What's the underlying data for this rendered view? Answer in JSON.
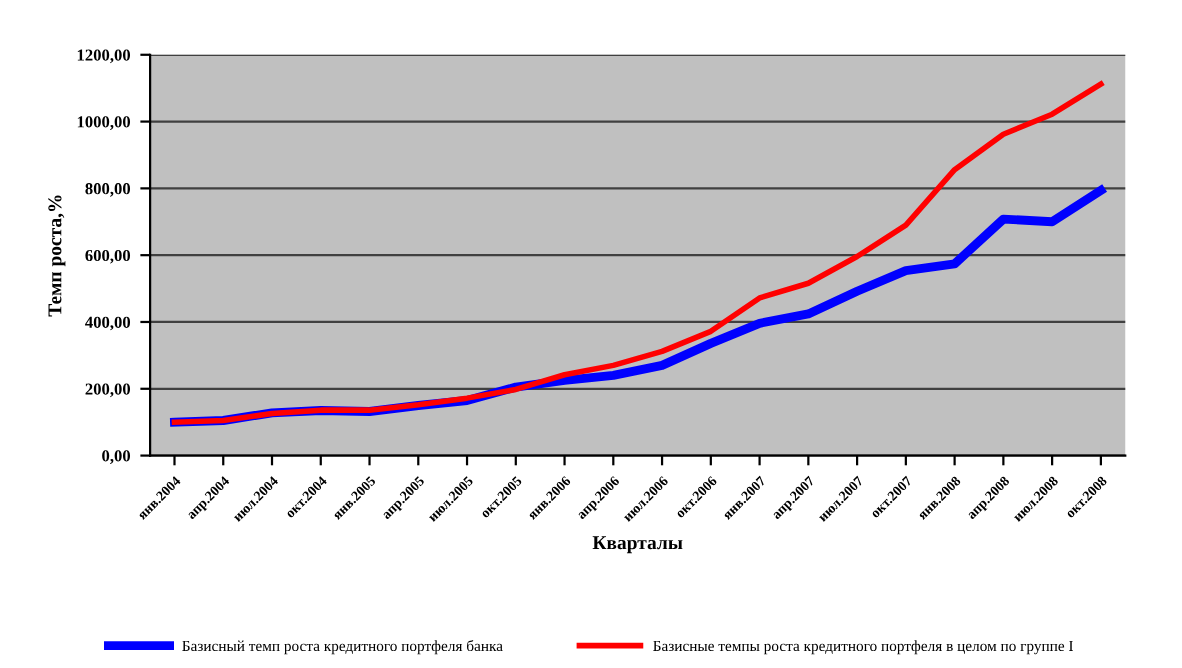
{
  "chart_data": {
    "type": "line",
    "xlabel": "Кварталы",
    "ylabel": "Темп роста,%",
    "categories": [
      "янв.2004",
      "апр.2004",
      "июл.2004",
      "окт.2004",
      "янв.2005",
      "апр.2005",
      "июл.2005",
      "окт.2005",
      "янв.2006",
      "апр.2006",
      "июл.2006",
      "окт.2006",
      "янв.2007",
      "апр.2007",
      "июл.2007",
      "окт.2007",
      "янв.2008",
      "апр.2008",
      "июл.2008",
      "окт.2008"
    ],
    "series": [
      {
        "name": "Базисный темп роста кредитного портфеля банка",
        "color": "#0000ff",
        "values": [
          100,
          105,
          128,
          135,
          132,
          150,
          165,
          205,
          225,
          240,
          270,
          336,
          396,
          424,
          492,
          554,
          574,
          708,
          700,
          794
        ]
      },
      {
        "name": "Базисные темпы роста кредитного портфеля в целом по группе I",
        "color": "#ff0000",
        "values": [
          100,
          105,
          126,
          136,
          136,
          152,
          172,
          198,
          242,
          270,
          312,
          372,
          472,
          516,
          596,
          690,
          856,
          962,
          1022,
          1112
        ]
      }
    ],
    "ylim": [
      0,
      1200
    ],
    "yticks": [
      {
        "value": 0,
        "label": "0,00"
      },
      {
        "value": 200,
        "label": "200,00"
      },
      {
        "value": 400,
        "label": "400,00"
      },
      {
        "value": 600,
        "label": "600,00"
      },
      {
        "value": 800,
        "label": "800,00"
      },
      {
        "value": 1000,
        "label": "1000,00"
      },
      {
        "value": 1200,
        "label": "1200,00"
      }
    ],
    "grid": "y",
    "legend": "bottom",
    "marker": "none",
    "line_style": "solid"
  }
}
